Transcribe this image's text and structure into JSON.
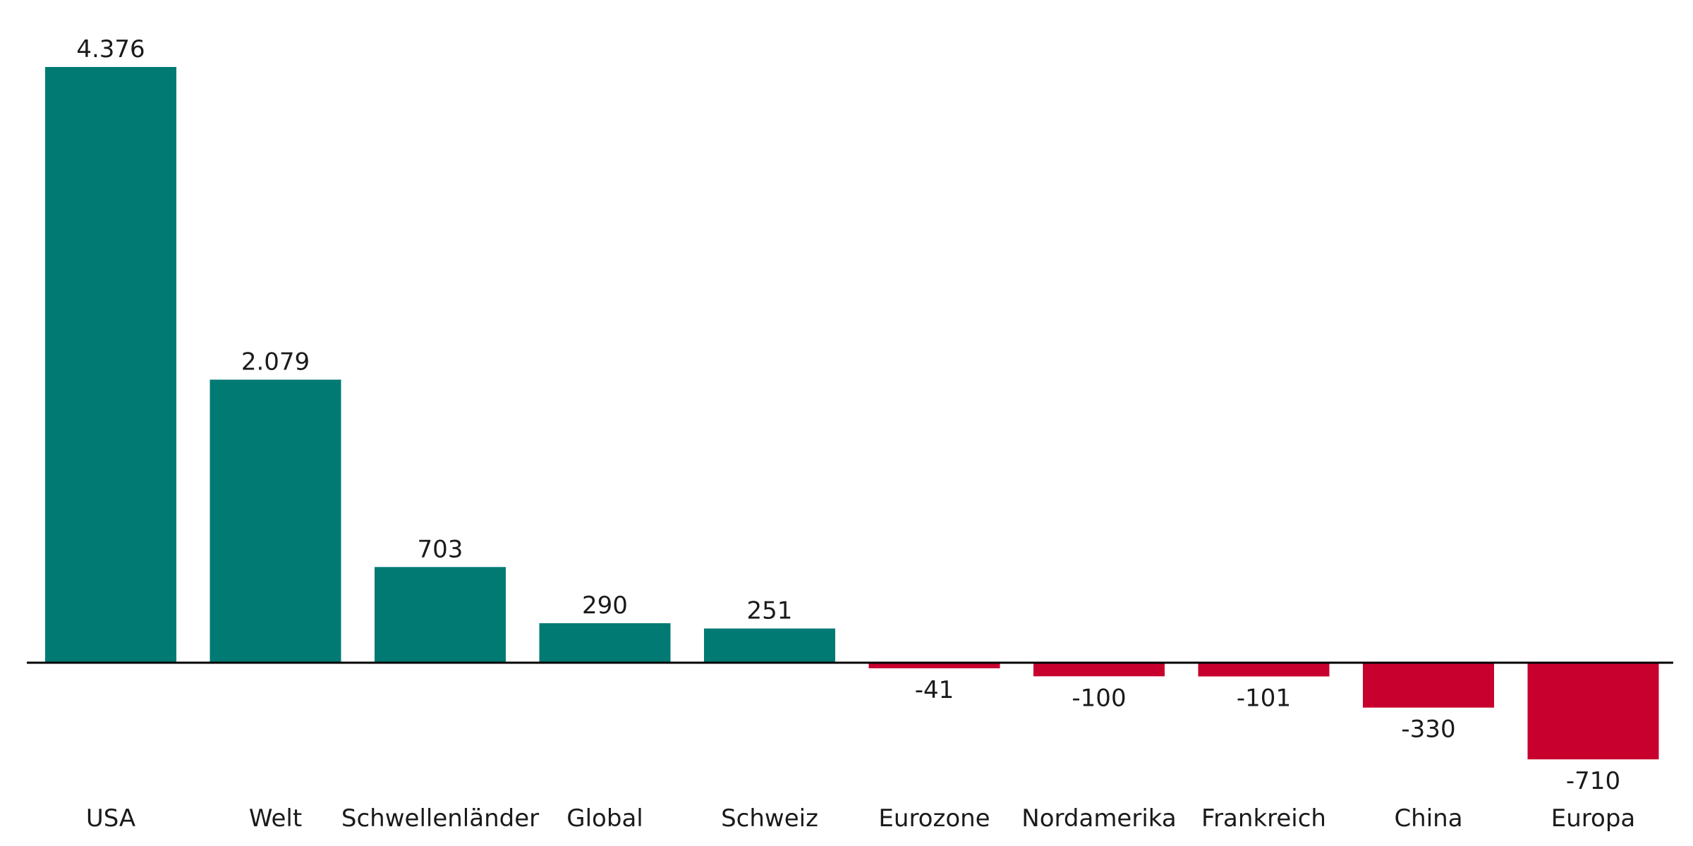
{
  "chart_data": {
    "type": "bar",
    "categories": [
      "USA",
      "Welt",
      "Schwellenländer",
      "Global",
      "Schweiz",
      "Eurozone",
      "Nordamerika",
      "Frankreich",
      "China",
      "Europa"
    ],
    "values": [
      4376,
      2079,
      703,
      290,
      251,
      -41,
      -100,
      -101,
      -330,
      -710
    ],
    "value_labels": [
      "4.376",
      "2.079",
      "703",
      "290",
      "251",
      "-41",
      "-100",
      "-101",
      "-330",
      "-710"
    ],
    "ylim": [
      -710,
      4376
    ],
    "grid": false,
    "colors": {
      "positive": "#007A73",
      "negative": "#C8002E",
      "axis": "#000000",
      "text": "#1a1a1a"
    }
  }
}
